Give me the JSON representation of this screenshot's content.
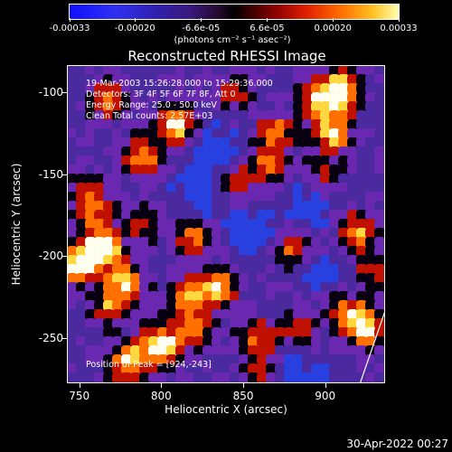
{
  "colorbar": {
    "tick_labels": [
      "-0.00033",
      "-0.00020",
      "-6.6e-05",
      "6.6e-05",
      "0.00020",
      "0.00033"
    ],
    "tick_fractions": [
      0.0,
      0.1985,
      0.399,
      0.6,
      0.8,
      1.0
    ],
    "units": "(photons cm⁻² s⁻¹ asec⁻²)",
    "colors": [
      "#1010ff",
      "#3020b0",
      "#000000",
      "#900000",
      "#ff6a00",
      "#ffffb0"
    ]
  },
  "title": "Reconstructed RHESSI Image",
  "info": {
    "time_range": "19-Mar-2003 15:26:28.000 to 15:29:36.000",
    "detectors": "Detectors: 3F 4F 5F 6F 7F 8F, Att 0",
    "energy_range": "Energy Range: 25.0 - 50.0 keV",
    "clean": "Clean    Total counts: 2.57E+03",
    "peak": "Position of Peak = [924,-243]"
  },
  "axes": {
    "x_label": "Heliocentric X (arcsec)",
    "y_label": "Heliocentric Y (arcsec)",
    "x_ticks": [
      "750",
      "800",
      "850",
      "900"
    ],
    "y_ticks": [
      "-100",
      "-150",
      "-200",
      "-250"
    ],
    "x_range": [
      743,
      936
    ],
    "y_range": [
      -277,
      -84
    ]
  },
  "palette": {
    "background": "#000000",
    "map_base": "#4a2a9e",
    "blue": "#2840e0",
    "violet": "#6a28b0",
    "black": "#080010",
    "red": "#c01000",
    "orange": "#ff7000",
    "yellow": "#ffd840",
    "white": "#fffff0"
  },
  "blobs": [
    {
      "x": 910,
      "y": -100,
      "v": 1.0
    },
    {
      "x": 895,
      "y": -105,
      "v": 0.7
    },
    {
      "x": 870,
      "y": -125,
      "v": 0.6
    },
    {
      "x": 905,
      "y": -125,
      "v": 0.8
    },
    {
      "x": 865,
      "y": -145,
      "v": 0.55
    },
    {
      "x": 845,
      "y": -155,
      "v": 0.5
    },
    {
      "x": 810,
      "y": -120,
      "v": 0.9
    },
    {
      "x": 790,
      "y": -140,
      "v": 0.75
    },
    {
      "x": 768,
      "y": -105,
      "v": 0.6
    },
    {
      "x": 820,
      "y": -190,
      "v": 0.65
    },
    {
      "x": 760,
      "y": -175,
      "v": 0.5
    },
    {
      "x": 750,
      "y": -205,
      "v": 1.0
    },
    {
      "x": 765,
      "y": -195,
      "v": 0.9
    },
    {
      "x": 778,
      "y": -215,
      "v": 0.7
    },
    {
      "x": 770,
      "y": -230,
      "v": 0.6
    },
    {
      "x": 835,
      "y": -220,
      "v": 0.8
    },
    {
      "x": 815,
      "y": -225,
      "v": 0.6
    },
    {
      "x": 880,
      "y": -195,
      "v": 0.55
    },
    {
      "x": 920,
      "y": -185,
      "v": 0.65
    },
    {
      "x": 930,
      "y": -210,
      "v": 0.5
    },
    {
      "x": 800,
      "y": -255,
      "v": 1.0
    },
    {
      "x": 780,
      "y": -265,
      "v": 0.8
    },
    {
      "x": 820,
      "y": -245,
      "v": 0.6
    },
    {
      "x": 860,
      "y": -250,
      "v": 0.55
    },
    {
      "x": 885,
      "y": -245,
      "v": 0.5
    },
    {
      "x": 924,
      "y": -243,
      "v": 1.0
    },
    {
      "x": 910,
      "y": -230,
      "v": 0.55
    },
    {
      "x": 755,
      "y": -160,
      "v": 0.45
    },
    {
      "x": 845,
      "y": -100,
      "v": 0.45
    },
    {
      "x": 900,
      "y": -150,
      "v": 0.4
    },
    {
      "x": 790,
      "y": -180,
      "v": 0.4
    },
    {
      "x": 860,
      "y": -270,
      "v": 0.45
    }
  ],
  "dark_regions": [
    {
      "x": 835,
      "y": -135
    },
    {
      "x": 890,
      "y": -170
    },
    {
      "x": 905,
      "y": -215
    },
    {
      "x": 855,
      "y": -185
    },
    {
      "x": 880,
      "y": -270
    },
    {
      "x": 825,
      "y": -160
    }
  ],
  "footer_stamp": "30-Apr-2022 00:27"
}
